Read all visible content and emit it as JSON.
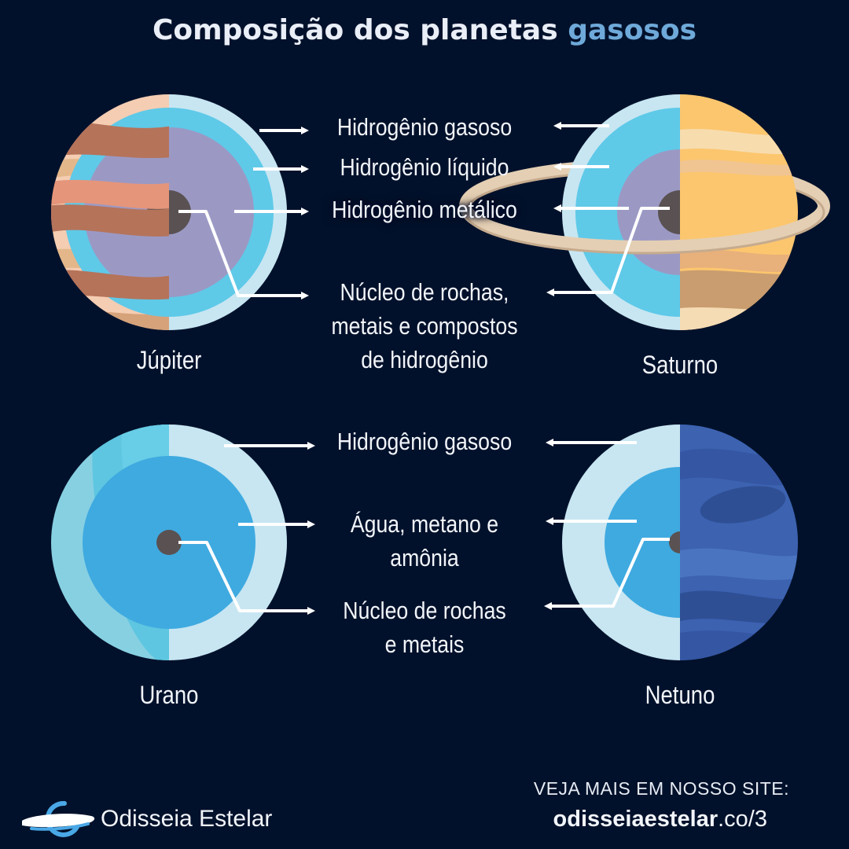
{
  "title": {
    "main": "Composição dos planetas",
    "accent": "gasosos"
  },
  "planets": [
    {
      "name": "Júpiter"
    },
    {
      "name": "Saturno"
    },
    {
      "name": "Urano"
    },
    {
      "name": "Netuno"
    }
  ],
  "layers_top": [
    "Hidrogênio gasoso",
    "Hidrogênio líquido",
    "Hidrogênio metálico",
    [
      "Núcleo de rochas,",
      "metais e compostos",
      "de hidrogênio"
    ]
  ],
  "layers_bottom": [
    "Hidrogênio gasoso",
    [
      "Água, metano e",
      "amônia"
    ],
    [
      "Núcleo de rochas",
      "e metais"
    ]
  ],
  "brand": {
    "name": "Odisseia Estelar"
  },
  "cta": {
    "line1": "VEJA MAIS EM NOSSO SITE:",
    "domain_bold": "odisseiaestelar",
    "domain_rest": ".co/3"
  },
  "colors": {
    "background": "#02112b",
    "title_accent": "#6ea9d9",
    "outer_shell": "#c7e6f2",
    "liquid_hydrogen": "#5fc9e8",
    "metallic_hydrogen": "#9b99c4",
    "core": "#5a5152",
    "water_methane_ammonia": "#3faae0"
  }
}
